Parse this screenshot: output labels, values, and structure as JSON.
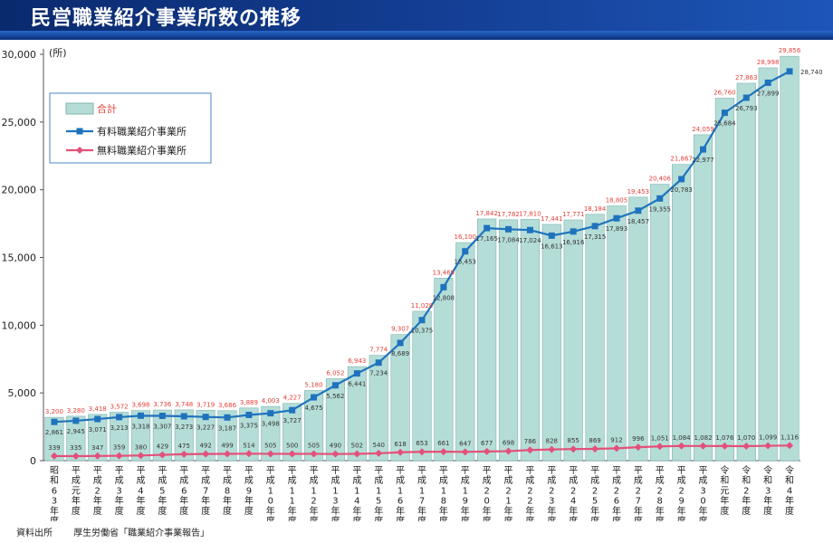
{
  "title": "民営職業紹介事業所数の推移",
  "source": {
    "label": "資料出所",
    "text": "厚生労働省「職業紹介事業報告」"
  },
  "chart_data": {
    "type": "bar",
    "ylabel": "(所)",
    "ylim": [
      0,
      30000
    ],
    "yticks": [
      "0",
      "5,000",
      "10,000",
      "15,000",
      "20,000",
      "25,000",
      "30,000"
    ],
    "categories": [
      "昭和63年度",
      "平成元年度",
      "平成2年度",
      "平成3年度",
      "平成4年度",
      "平成5年度",
      "平成6年度",
      "平成7年度",
      "平成8年度",
      "平成9年度",
      "平成10年度",
      "平成11年度",
      "平成12年度",
      "平成13年度",
      "平成14年度",
      "平成15年度",
      "平成16年度",
      "平成17年度",
      "平成18年度",
      "平成19年度",
      "平成20年度",
      "平成21年度",
      "平成22年度",
      "平成23年度",
      "平成24年度",
      "平成25年度",
      "平成26年度",
      "平成27年度",
      "平成28年度",
      "平成29年度",
      "平成30年度",
      "令和元年度",
      "令和2年度",
      "令和3年度",
      "令和4年度"
    ],
    "legend_position": "top-left",
    "series": [
      {
        "name": "合計",
        "type": "bar",
        "color": "#b5ddd8",
        "values": [
          3200,
          3280,
          3418,
          3572,
          3698,
          3736,
          3748,
          3719,
          3686,
          3889,
          4003,
          4227,
          5180,
          6052,
          6943,
          7774,
          9307,
          11028,
          13469,
          16100,
          17842,
          17782,
          17810,
          17441,
          17771,
          18184,
          18805,
          19453,
          20406,
          21867,
          24059,
          26760,
          27863,
          28998,
          29856
        ]
      },
      {
        "name": "有料職業紹介事業所",
        "type": "line",
        "color": "#1f73bd",
        "values": [
          2861,
          2945,
          3071,
          3213,
          3318,
          3307,
          3273,
          3227,
          3187,
          3375,
          3498,
          3727,
          4675,
          5562,
          6441,
          7234,
          8689,
          10375,
          12808,
          15453,
          17165,
          17084,
          17024,
          16613,
          16916,
          17315,
          17893,
          18457,
          19355,
          20783,
          22977,
          25684,
          26793,
          27899,
          28740
        ]
      },
      {
        "name": "無料職業紹介事業所",
        "type": "line",
        "color": "#e3507a",
        "values": [
          339,
          335,
          347,
          359,
          380,
          429,
          475,
          492,
          499,
          514,
          505,
          500,
          505,
          490,
          502,
          540,
          618,
          653,
          661,
          647,
          677,
          698,
          786,
          828,
          855,
          869,
          912,
          996,
          1051,
          1084,
          1082,
          1076,
          1070,
          1099,
          1116
        ]
      }
    ]
  }
}
